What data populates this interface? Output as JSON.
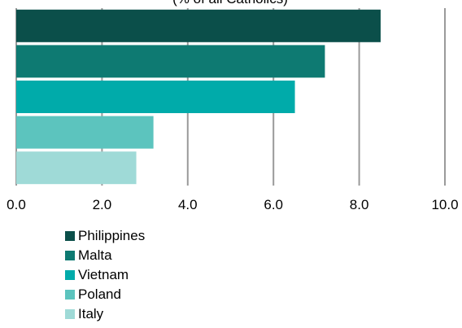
{
  "chart_data": {
    "type": "bar",
    "orientation": "horizontal",
    "title": "(% of all Catholics)",
    "categories": [
      "Philippines",
      "Malta",
      "Vietnam",
      "Poland",
      "Italy"
    ],
    "series": [
      {
        "values": [
          8.5,
          7.2,
          6.5,
          3.2,
          2.8
        ]
      }
    ],
    "colors": [
      "#0B4F4A",
      "#0E7A72",
      "#00ABAA",
      "#5CC4BE",
      "#9FDAD7"
    ],
    "x_ticks": [
      "0.0",
      "2.0",
      "4.0",
      "6.0",
      "8.0",
      "10.0"
    ],
    "xlim": [
      0,
      10
    ],
    "xlabel": "",
    "ylabel": "",
    "grid": "vertical",
    "legend": "bottom-left"
  }
}
